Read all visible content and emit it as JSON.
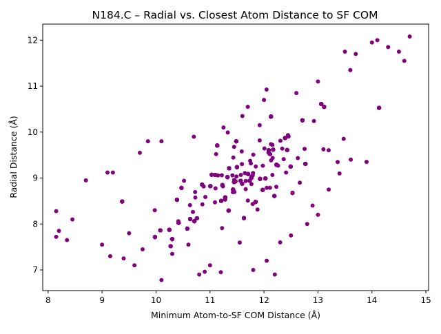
{
  "chart_data": {
    "type": "scatter",
    "title": "N184.C – Radial vs. Closest Atom Distance to SF COM",
    "xlabel": "Minimum Atom-to-SF COM Distance (Å)",
    "ylabel": "Radial Distance (Å)",
    "xlim": [
      7.9,
      15.05
    ],
    "ylim": [
      6.55,
      12.35
    ],
    "x_ticks": [
      8,
      9,
      10,
      11,
      12,
      13,
      14,
      15
    ],
    "y_ticks": [
      7,
      8,
      9,
      10,
      11,
      12
    ],
    "x_tick_labels": [
      "8",
      "9",
      "10",
      "11",
      "12",
      "13",
      "14",
      "15"
    ],
    "y_tick_labels": [
      "7",
      "8",
      "9",
      "10",
      "11",
      "12"
    ],
    "grid": false,
    "legend": "none",
    "marker_color": "#800080",
    "series": [
      {
        "values": [
          [
            8.15,
            8.28
          ],
          [
            8.2,
            7.85
          ],
          [
            8.15,
            7.72
          ],
          [
            8.35,
            7.65
          ],
          [
            8.45,
            8.1
          ],
          [
            8.7,
            8.95
          ],
          [
            9.1,
            9.12
          ],
          [
            9.2,
            9.12
          ],
          [
            9.0,
            7.55
          ],
          [
            9.15,
            7.3
          ],
          [
            9.4,
            7.25
          ],
          [
            9.5,
            7.8
          ],
          [
            9.6,
            7.1
          ],
          [
            9.7,
            9.55
          ],
          [
            9.75,
            7.45
          ],
          [
            9.85,
            9.8
          ],
          [
            10.1,
            6.78
          ],
          [
            10.1,
            9.8
          ],
          [
            10.3,
            7.35
          ],
          [
            10.6,
            7.55
          ],
          [
            10.7,
            9.9
          ],
          [
            10.8,
            6.9
          ],
          [
            11.0,
            7.1
          ],
          [
            11.2,
            6.95
          ],
          [
            11.25,
            10.1
          ],
          [
            11.6,
            10.35
          ],
          [
            11.7,
            10.55
          ],
          [
            11.8,
            7.0
          ],
          [
            12.0,
            10.7
          ],
          [
            12.05,
            7.2
          ],
          [
            12.2,
            6.9
          ],
          [
            12.3,
            7.6
          ],
          [
            12.5,
            7.75
          ],
          [
            12.6,
            10.85
          ],
          [
            12.8,
            8.0
          ],
          [
            12.9,
            8.4
          ],
          [
            13.0,
            11.1
          ],
          [
            13.0,
            8.2
          ],
          [
            13.2,
            8.75
          ],
          [
            13.4,
            9.1
          ],
          [
            13.5,
            11.75
          ],
          [
            13.6,
            11.35
          ],
          [
            13.9,
            9.35
          ],
          [
            14.1,
            12.0
          ],
          [
            14.3,
            11.85
          ],
          [
            14.5,
            11.75
          ],
          [
            14.7,
            12.08
          ],
          [
            14.6,
            11.55
          ],
          [
            14.0,
            11.95
          ],
          [
            13.7,
            11.7
          ]
        ]
      }
    ]
  }
}
